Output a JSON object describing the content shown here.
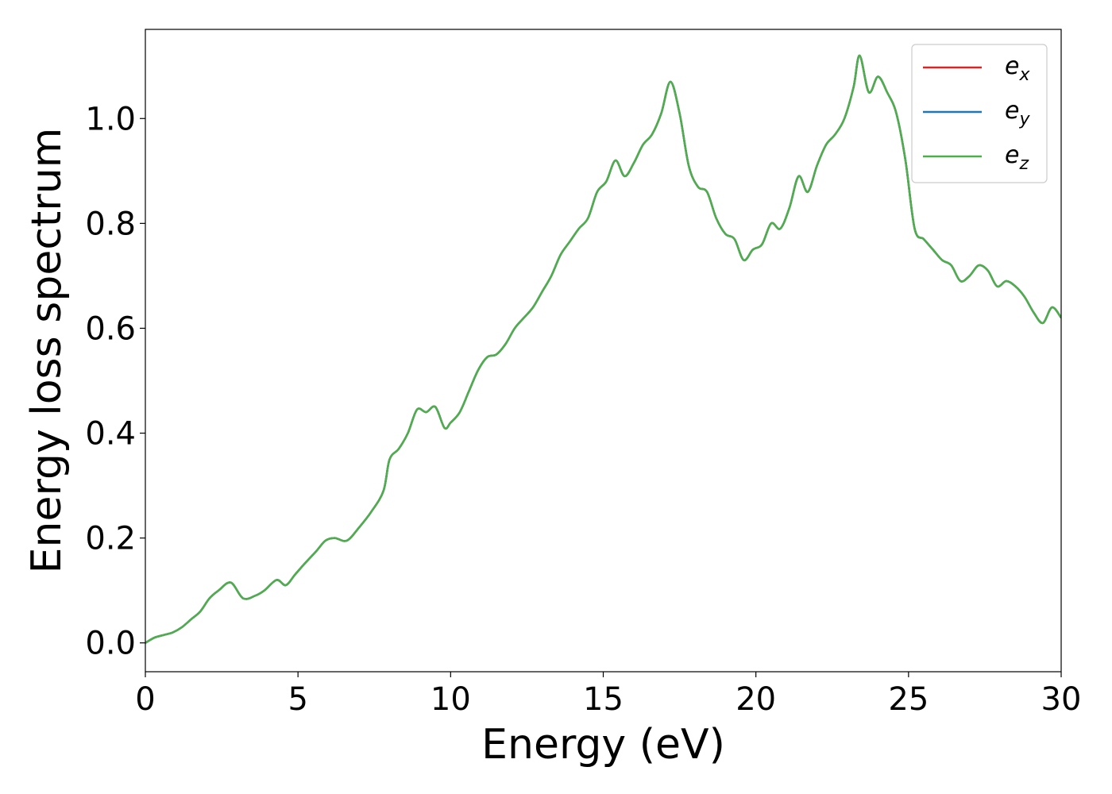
{
  "chart_data": {
    "type": "line",
    "title": "",
    "xlabel": "Energy (eV)",
    "ylabel": "Energy loss spectrum",
    "xlim": [
      0,
      30
    ],
    "ylim": [
      -0.055,
      1.17
    ],
    "xticks": [
      0,
      5,
      10,
      15,
      20,
      25,
      30
    ],
    "xtick_labels": [
      "0",
      "5",
      "10",
      "15",
      "20",
      "25",
      "30"
    ],
    "yticks": [
      0.0,
      0.2,
      0.4,
      0.6,
      0.8,
      1.0
    ],
    "ytick_labels": [
      "0.0",
      "0.2",
      "0.4",
      "0.6",
      "0.8",
      "1.0"
    ],
    "grid": false,
    "legend_position": "top-right",
    "legend": [
      {
        "base": "e",
        "sub": "x",
        "color": "#d62728"
      },
      {
        "base": "e",
        "sub": "y",
        "color": "#1f77b4"
      },
      {
        "base": "e",
        "sub": "z",
        "color": "#4daf4a"
      }
    ],
    "x": [
      0,
      0.3,
      0.6,
      0.9,
      1.2,
      1.5,
      1.8,
      2.1,
      2.4,
      2.8,
      3.2,
      3.6,
      3.9,
      4.3,
      4.6,
      4.9,
      5.2,
      5.6,
      5.9,
      6.2,
      6.6,
      7.0,
      7.4,
      7.8,
      8.0,
      8.3,
      8.6,
      8.9,
      9.2,
      9.5,
      9.8,
      10.0,
      10.3,
      10.6,
      10.9,
      11.2,
      11.5,
      11.8,
      12.1,
      12.4,
      12.7,
      13.0,
      13.3,
      13.6,
      13.9,
      14.2,
      14.5,
      14.8,
      15.1,
      15.4,
      15.7,
      16.0,
      16.3,
      16.6,
      16.9,
      17.2,
      17.5,
      17.8,
      18.1,
      18.4,
      18.7,
      19.0,
      19.3,
      19.6,
      19.9,
      20.2,
      20.5,
      20.8,
      21.1,
      21.4,
      21.7,
      22.0,
      22.3,
      22.6,
      22.9,
      23.2,
      23.4,
      23.7,
      24.0,
      24.3,
      24.6,
      24.9,
      25.2,
      25.5,
      25.8,
      26.1,
      26.4,
      26.7,
      27.0,
      27.3,
      27.6,
      27.9,
      28.2,
      28.5,
      28.8,
      29.1,
      29.4,
      29.7,
      30.0
    ],
    "series": [
      {
        "name": "e_x",
        "color": "#d62728",
        "values": [
          0.0,
          0.01,
          0.015,
          0.02,
          0.03,
          0.045,
          0.06,
          0.085,
          0.1,
          0.115,
          0.085,
          0.09,
          0.1,
          0.12,
          0.11,
          0.13,
          0.15,
          0.175,
          0.195,
          0.2,
          0.195,
          0.22,
          0.25,
          0.29,
          0.35,
          0.37,
          0.4,
          0.445,
          0.44,
          0.45,
          0.41,
          0.42,
          0.44,
          0.48,
          0.52,
          0.545,
          0.55,
          0.57,
          0.6,
          0.62,
          0.64,
          0.67,
          0.7,
          0.74,
          0.765,
          0.79,
          0.81,
          0.86,
          0.88,
          0.92,
          0.89,
          0.915,
          0.95,
          0.97,
          1.01,
          1.07,
          1.01,
          0.91,
          0.87,
          0.86,
          0.81,
          0.78,
          0.77,
          0.73,
          0.75,
          0.76,
          0.8,
          0.79,
          0.83,
          0.89,
          0.86,
          0.91,
          0.95,
          0.97,
          1.0,
          1.06,
          1.12,
          1.05,
          1.08,
          1.05,
          1.01,
          0.92,
          0.79,
          0.77,
          0.75,
          0.73,
          0.72,
          0.69,
          0.7,
          0.72,
          0.71,
          0.68,
          0.69,
          0.68,
          0.66,
          0.63,
          0.61,
          0.64,
          0.62
        ]
      },
      {
        "name": "e_y",
        "color": "#1f77b4",
        "values": [
          0.0,
          0.01,
          0.015,
          0.02,
          0.03,
          0.045,
          0.06,
          0.085,
          0.1,
          0.115,
          0.085,
          0.09,
          0.1,
          0.12,
          0.11,
          0.13,
          0.15,
          0.175,
          0.195,
          0.2,
          0.195,
          0.22,
          0.25,
          0.29,
          0.35,
          0.37,
          0.4,
          0.445,
          0.44,
          0.45,
          0.41,
          0.42,
          0.44,
          0.48,
          0.52,
          0.545,
          0.55,
          0.57,
          0.6,
          0.62,
          0.64,
          0.67,
          0.7,
          0.74,
          0.765,
          0.79,
          0.81,
          0.86,
          0.88,
          0.92,
          0.89,
          0.915,
          0.95,
          0.97,
          1.01,
          1.07,
          1.01,
          0.91,
          0.87,
          0.86,
          0.81,
          0.78,
          0.77,
          0.73,
          0.75,
          0.76,
          0.8,
          0.79,
          0.83,
          0.89,
          0.86,
          0.91,
          0.95,
          0.97,
          1.0,
          1.06,
          1.12,
          1.05,
          1.08,
          1.05,
          1.01,
          0.92,
          0.79,
          0.77,
          0.75,
          0.73,
          0.72,
          0.69,
          0.7,
          0.72,
          0.71,
          0.68,
          0.69,
          0.68,
          0.66,
          0.63,
          0.61,
          0.64,
          0.62
        ]
      },
      {
        "name": "e_z",
        "color": "#4daf4a",
        "values": [
          0.0,
          0.01,
          0.015,
          0.02,
          0.03,
          0.045,
          0.06,
          0.085,
          0.1,
          0.115,
          0.085,
          0.09,
          0.1,
          0.12,
          0.11,
          0.13,
          0.15,
          0.175,
          0.195,
          0.2,
          0.195,
          0.22,
          0.25,
          0.29,
          0.35,
          0.37,
          0.4,
          0.445,
          0.44,
          0.45,
          0.41,
          0.42,
          0.44,
          0.48,
          0.52,
          0.545,
          0.55,
          0.57,
          0.6,
          0.62,
          0.64,
          0.67,
          0.7,
          0.74,
          0.765,
          0.79,
          0.81,
          0.86,
          0.88,
          0.92,
          0.89,
          0.915,
          0.95,
          0.97,
          1.01,
          1.07,
          1.01,
          0.91,
          0.87,
          0.86,
          0.81,
          0.78,
          0.77,
          0.73,
          0.75,
          0.76,
          0.8,
          0.79,
          0.83,
          0.89,
          0.86,
          0.91,
          0.95,
          0.97,
          1.0,
          1.06,
          1.12,
          1.05,
          1.08,
          1.05,
          1.01,
          0.92,
          0.79,
          0.77,
          0.75,
          0.73,
          0.72,
          0.69,
          0.7,
          0.72,
          0.71,
          0.68,
          0.69,
          0.68,
          0.66,
          0.63,
          0.61,
          0.64,
          0.62
        ]
      }
    ]
  }
}
